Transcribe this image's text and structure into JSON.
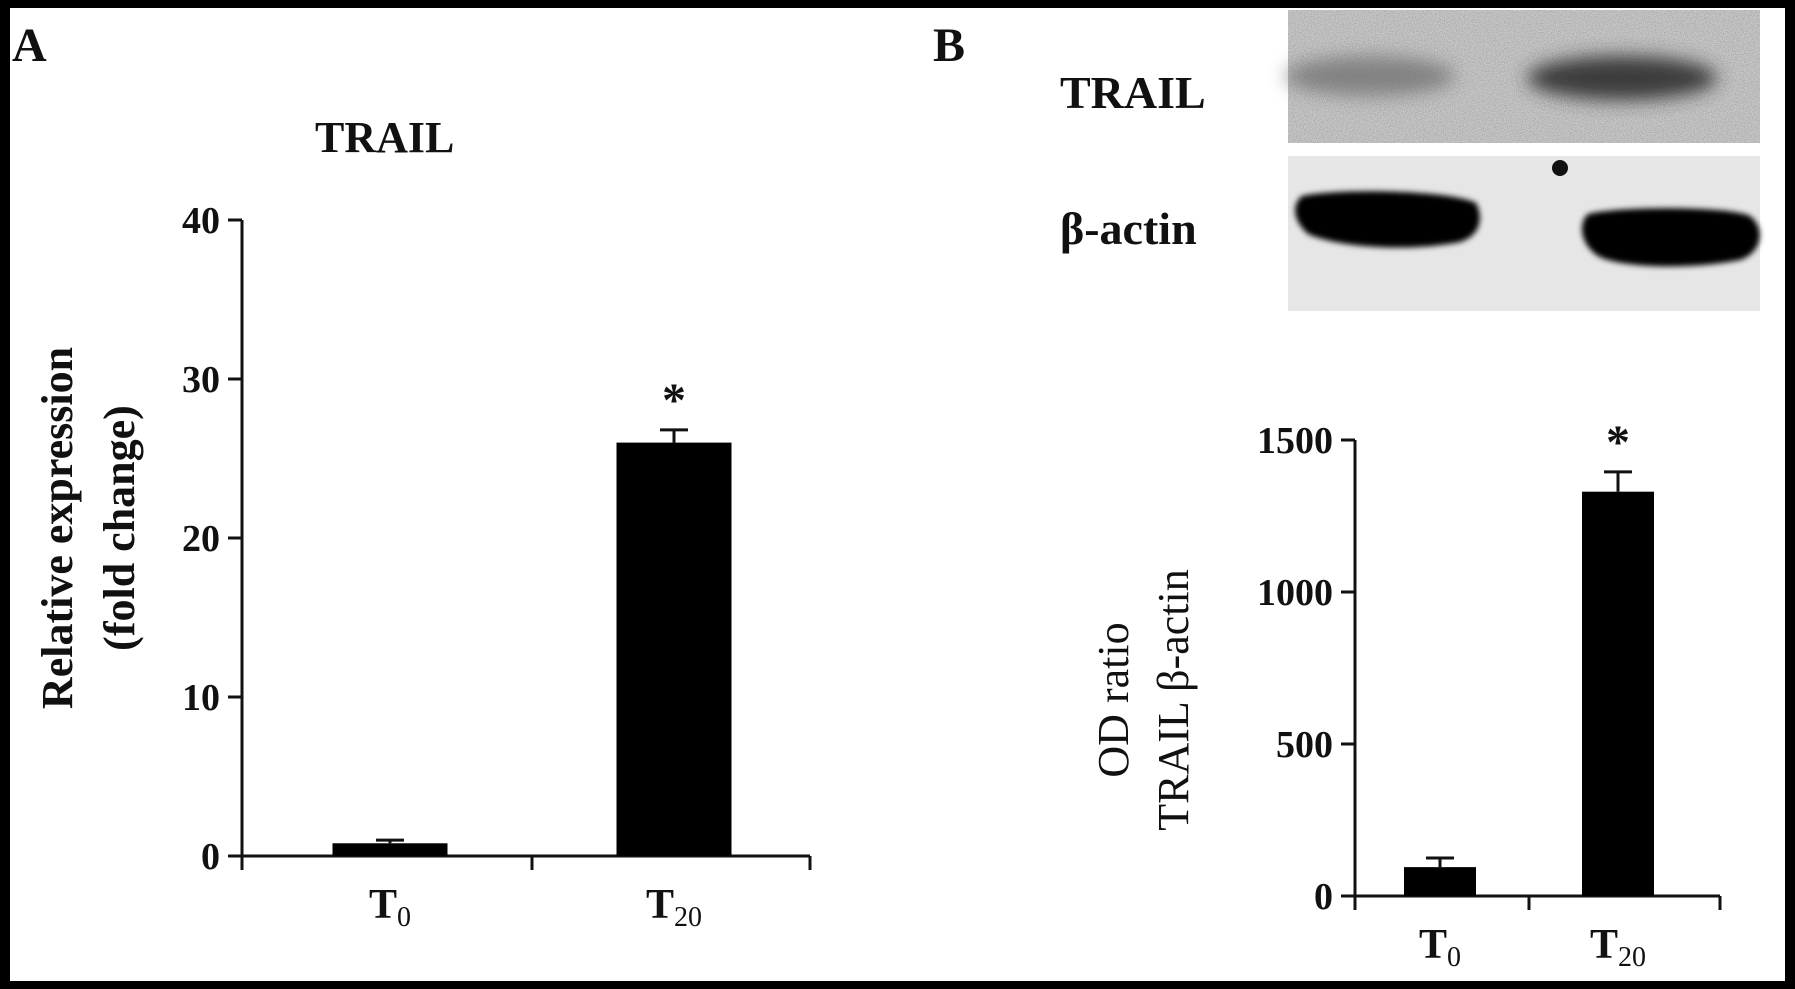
{
  "panel_a": {
    "letter": "A"
  },
  "panel_b": {
    "letter": "B"
  },
  "blot": {
    "labels": [
      "TRAIL",
      "β-actin"
    ],
    "background": "#d4d4d4",
    "band_color": "#0a0a0a"
  },
  "chart_data": [
    {
      "type": "bar",
      "title": "TRAIL",
      "ylabel": [
        "Relative expression",
        "(fold change)"
      ],
      "xlabel": "",
      "categories": [
        {
          "base": "T",
          "sub": "0"
        },
        {
          "base": "T",
          "sub": "20"
        }
      ],
      "values": [
        0.8,
        26.0
      ],
      "errors": [
        0.2,
        0.8
      ],
      "significance": [
        "",
        "*"
      ],
      "ylim": [
        0,
        40
      ],
      "yticks": [
        0,
        10,
        20,
        30,
        40
      ],
      "bar_color": "#000000",
      "grid": false,
      "legend": "none"
    },
    {
      "type": "bar",
      "title": "",
      "ylabel": [
        "OD ratio",
        "TRAIL β-actin"
      ],
      "xlabel": "",
      "categories": [
        {
          "base": "T",
          "sub": "0"
        },
        {
          "base": "T",
          "sub": "20"
        }
      ],
      "values": [
        95,
        1330
      ],
      "errors": [
        30,
        65
      ],
      "significance": [
        "",
        "*"
      ],
      "ylim": [
        0,
        1500
      ],
      "yticks": [
        0,
        500,
        1000,
        1500
      ],
      "bar_color": "#000000",
      "grid": false,
      "legend": "none"
    }
  ]
}
